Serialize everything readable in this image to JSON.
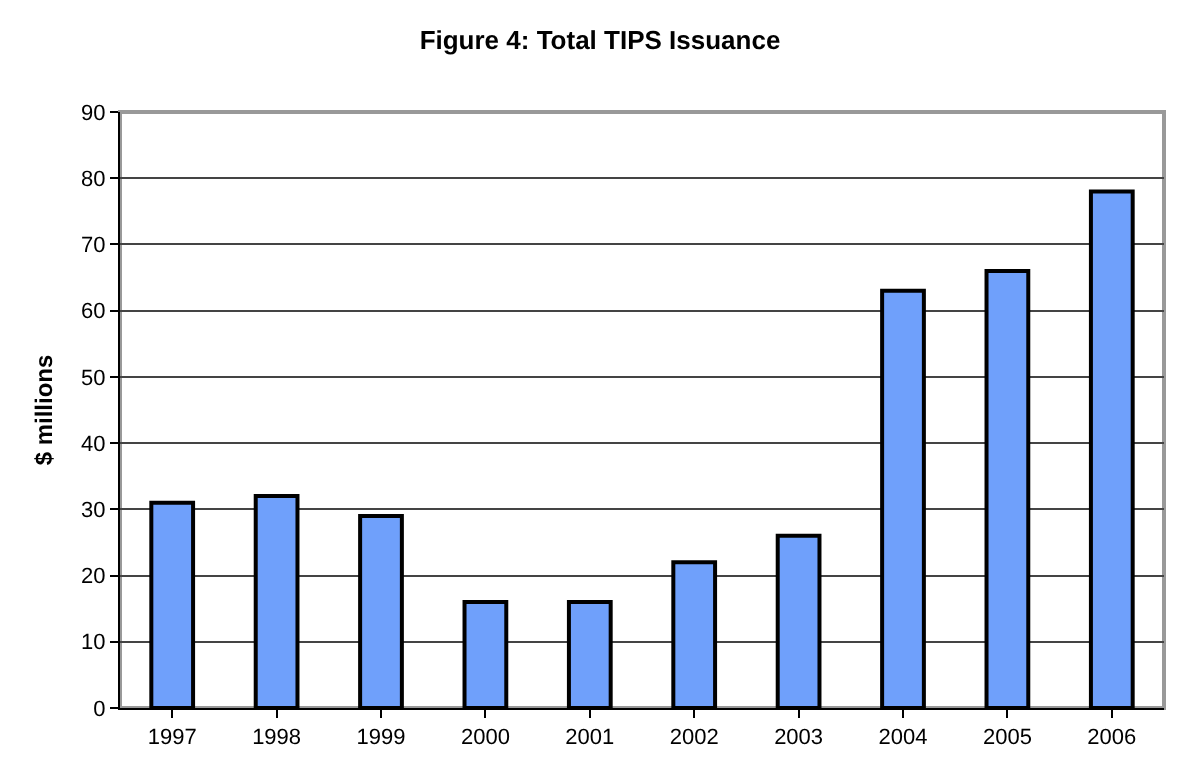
{
  "chart_data": {
    "type": "bar",
    "title": "Figure 4: Total TIPS Issuance",
    "ylabel": "$ millions",
    "categories": [
      "1997",
      "1998",
      "1999",
      "2000",
      "2001",
      "2002",
      "2003",
      "2004",
      "2005",
      "2006"
    ],
    "values": [
      31,
      32,
      29,
      16,
      16,
      22,
      26,
      63,
      66,
      78
    ],
    "color": "#6fa0fb",
    "ylim": [
      0,
      90
    ],
    "yticks": [
      0,
      10,
      20,
      30,
      40,
      50,
      60,
      70,
      80,
      90
    ],
    "grid": "y",
    "legend": false
  }
}
